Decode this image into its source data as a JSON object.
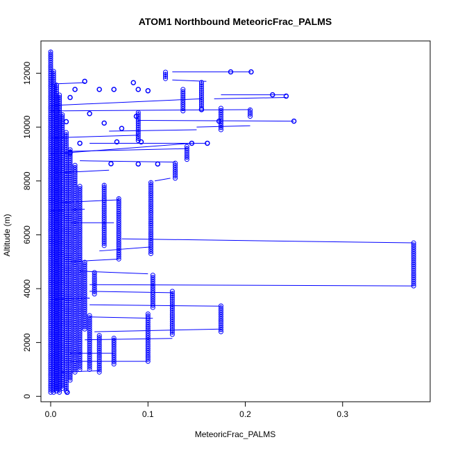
{
  "chart_data": {
    "type": "scatter",
    "title": "ATOM1 Northbound MeteoricFrac_PALMS",
    "xlabel": "MeteoricFrac_PALMS",
    "ylabel": "Altitude (m)",
    "xlim": [
      -0.01,
      0.39
    ],
    "ylim": [
      -200,
      13200
    ],
    "xticks": [
      0.0,
      0.1,
      0.2,
      0.3
    ],
    "xtick_labels": [
      "0.0",
      "0.1",
      "0.2",
      "0.3"
    ],
    "yticks": [
      0,
      2000,
      4000,
      6000,
      8000,
      10000,
      12000
    ],
    "ytick_labels": [
      "0",
      "2000",
      "4000",
      "6000",
      "8000",
      "10000",
      "12000"
    ],
    "grid": false,
    "series_color": "#0000ff",
    "marker": "open-circle",
    "connected": true,
    "profiles": [
      {
        "x": 0.0,
        "y0": 150,
        "y1": 12850
      },
      {
        "x": 0.003,
        "y0": 150,
        "y1": 12100
      },
      {
        "x": 0.006,
        "y0": 200,
        "y1": 11600
      },
      {
        "x": 0.009,
        "y0": 150,
        "y1": 11200
      },
      {
        "x": 0.012,
        "y0": 300,
        "y1": 10500
      },
      {
        "x": 0.016,
        "y0": 200,
        "y1": 9800
      },
      {
        "x": 0.02,
        "y0": 600,
        "y1": 9200
      },
      {
        "x": 0.025,
        "y0": 900,
        "y1": 8600
      },
      {
        "x": 0.03,
        "y0": 1000,
        "y1": 7800
      },
      {
        "x": 0.035,
        "y0": 2500,
        "y1": 5000
      },
      {
        "x": 0.04,
        "y0": 1000,
        "y1": 3000
      },
      {
        "x": 0.045,
        "y0": 3800,
        "y1": 4600
      },
      {
        "x": 0.05,
        "y0": 900,
        "y1": 2300
      },
      {
        "x": 0.055,
        "y0": 5600,
        "y1": 7900
      },
      {
        "x": 0.065,
        "y0": 1200,
        "y1": 2200
      },
      {
        "x": 0.07,
        "y0": 5100,
        "y1": 7400
      },
      {
        "x": 0.1,
        "y0": 1300,
        "y1": 3100
      },
      {
        "x": 0.105,
        "y0": 3300,
        "y1": 4500
      },
      {
        "x": 0.103,
        "y0": 5300,
        "y1": 8000
      },
      {
        "x": 0.125,
        "y0": 2300,
        "y1": 3900
      },
      {
        "x": 0.128,
        "y0": 8100,
        "y1": 8700
      },
      {
        "x": 0.175,
        "y0": 2400,
        "y1": 3400
      },
      {
        "x": 0.373,
        "y0": 4100,
        "y1": 5700
      },
      {
        "x": 0.118,
        "y0": 11800,
        "y1": 12050
      },
      {
        "x": 0.136,
        "y0": 10600,
        "y1": 11400
      },
      {
        "x": 0.155,
        "y0": 10700,
        "y1": 11700
      },
      {
        "x": 0.14,
        "y0": 8800,
        "y1": 9300
      },
      {
        "x": 0.175,
        "y0": 9900,
        "y1": 10700
      },
      {
        "x": 0.205,
        "y0": 10400,
        "y1": 10700
      },
      {
        "x": 0.09,
        "y0": 9500,
        "y1": 10600
      }
    ],
    "points": [
      {
        "x": 0.185,
        "y": 12050
      },
      {
        "x": 0.206,
        "y": 12050
      },
      {
        "x": 0.228,
        "y": 11200
      },
      {
        "x": 0.242,
        "y": 11150
      },
      {
        "x": 0.25,
        "y": 10220
      },
      {
        "x": 0.173,
        "y": 10220
      },
      {
        "x": 0.161,
        "y": 9400
      },
      {
        "x": 0.145,
        "y": 9400
      },
      {
        "x": 0.093,
        "y": 9450
      },
      {
        "x": 0.09,
        "y": 8630
      },
      {
        "x": 0.11,
        "y": 8630
      },
      {
        "x": 0.068,
        "y": 9450
      },
      {
        "x": 0.085,
        "y": 11650
      },
      {
        "x": 0.05,
        "y": 11400
      },
      {
        "x": 0.065,
        "y": 11400
      },
      {
        "x": 0.155,
        "y": 10650
      },
      {
        "x": 0.088,
        "y": 10400
      },
      {
        "x": 0.073,
        "y": 9950
      },
      {
        "x": 0.055,
        "y": 10150
      },
      {
        "x": 0.035,
        "y": 11700
      },
      {
        "x": 0.025,
        "y": 11400
      },
      {
        "x": 0.03,
        "y": 9400
      },
      {
        "x": 0.02,
        "y": 9050
      },
      {
        "x": 0.04,
        "y": 10500
      },
      {
        "x": 0.016,
        "y": 10200
      },
      {
        "x": 0.02,
        "y": 11100
      },
      {
        "x": 0.09,
        "y": 11400
      },
      {
        "x": 0.1,
        "y": 11350
      },
      {
        "x": 0.062,
        "y": 8640
      },
      {
        "x": 0.017,
        "y": 150
      }
    ],
    "segments": [
      {
        "x0": 0.125,
        "y0": 12050,
        "x1": 0.206,
        "y1": 12050
      },
      {
        "x0": 0.125,
        "y0": 11750,
        "x1": 0.16,
        "y1": 11700
      },
      {
        "x0": 0.175,
        "y0": 11200,
        "x1": 0.242,
        "y1": 11200
      },
      {
        "x0": 0.168,
        "y0": 11050,
        "x1": 0.242,
        "y1": 11100
      },
      {
        "x0": 0.09,
        "y0": 10250,
        "x1": 0.25,
        "y1": 10220
      },
      {
        "x0": 0.15,
        "y0": 10000,
        "x1": 0.205,
        "y1": 10050
      },
      {
        "x0": 0.06,
        "y0": 9850,
        "x1": 0.15,
        "y1": 9900
      },
      {
        "x0": 0.04,
        "y0": 9400,
        "x1": 0.16,
        "y1": 9400
      },
      {
        "x0": 0.02,
        "y0": 9100,
        "x1": 0.14,
        "y1": 9200
      },
      {
        "x0": 0.03,
        "y0": 8750,
        "x1": 0.128,
        "y1": 8700
      },
      {
        "x0": 0.005,
        "y0": 8300,
        "x1": 0.06,
        "y1": 8400
      },
      {
        "x0": 0.107,
        "y0": 8000,
        "x1": 0.123,
        "y1": 8100
      },
      {
        "x0": 0.01,
        "y0": 7200,
        "x1": 0.07,
        "y1": 7300
      },
      {
        "x0": 0.02,
        "y0": 6450,
        "x1": 0.065,
        "y1": 6450
      },
      {
        "x0": 0.073,
        "y0": 5850,
        "x1": 0.373,
        "y1": 5700
      },
      {
        "x0": 0.05,
        "y0": 5400,
        "x1": 0.103,
        "y1": 5550
      },
      {
        "x0": 0.02,
        "y0": 5000,
        "x1": 0.07,
        "y1": 5100
      },
      {
        "x0": 0.03,
        "y0": 4650,
        "x1": 0.1,
        "y1": 4550
      },
      {
        "x0": 0.04,
        "y0": 4150,
        "x1": 0.373,
        "y1": 4100
      },
      {
        "x0": 0.04,
        "y0": 3900,
        "x1": 0.125,
        "y1": 3850
      },
      {
        "x0": 0.04,
        "y0": 3400,
        "x1": 0.175,
        "y1": 3350
      },
      {
        "x0": 0.04,
        "y0": 2950,
        "x1": 0.105,
        "y1": 2900
      },
      {
        "x0": 0.045,
        "y0": 2400,
        "x1": 0.175,
        "y1": 2500
      },
      {
        "x0": 0.035,
        "y0": 2100,
        "x1": 0.125,
        "y1": 2150
      },
      {
        "x0": 0.02,
        "y0": 1600,
        "x1": 0.065,
        "y1": 1600
      },
      {
        "x0": 0.02,
        "y0": 1300,
        "x1": 0.1,
        "y1": 1300
      },
      {
        "x0": 0.01,
        "y0": 900,
        "x1": 0.05,
        "y1": 950
      },
      {
        "x0": 0.0,
        "y0": 11600,
        "x1": 0.035,
        "y1": 11650
      },
      {
        "x0": 0.0,
        "y0": 10800,
        "x1": 0.155,
        "y1": 11050
      },
      {
        "x0": 0.0,
        "y0": 10600,
        "x1": 0.205,
        "y1": 10650
      },
      {
        "x0": 0.0,
        "y0": 9600,
        "x1": 0.09,
        "y1": 9700
      },
      {
        "x0": 0.0,
        "y0": 9000,
        "x1": 0.145,
        "y1": 9400
      },
      {
        "x0": 0.0,
        "y0": 6900,
        "x1": 0.035,
        "y1": 6950
      },
      {
        "x0": 0.0,
        "y0": 3600,
        "x1": 0.04,
        "y1": 3650
      }
    ]
  }
}
